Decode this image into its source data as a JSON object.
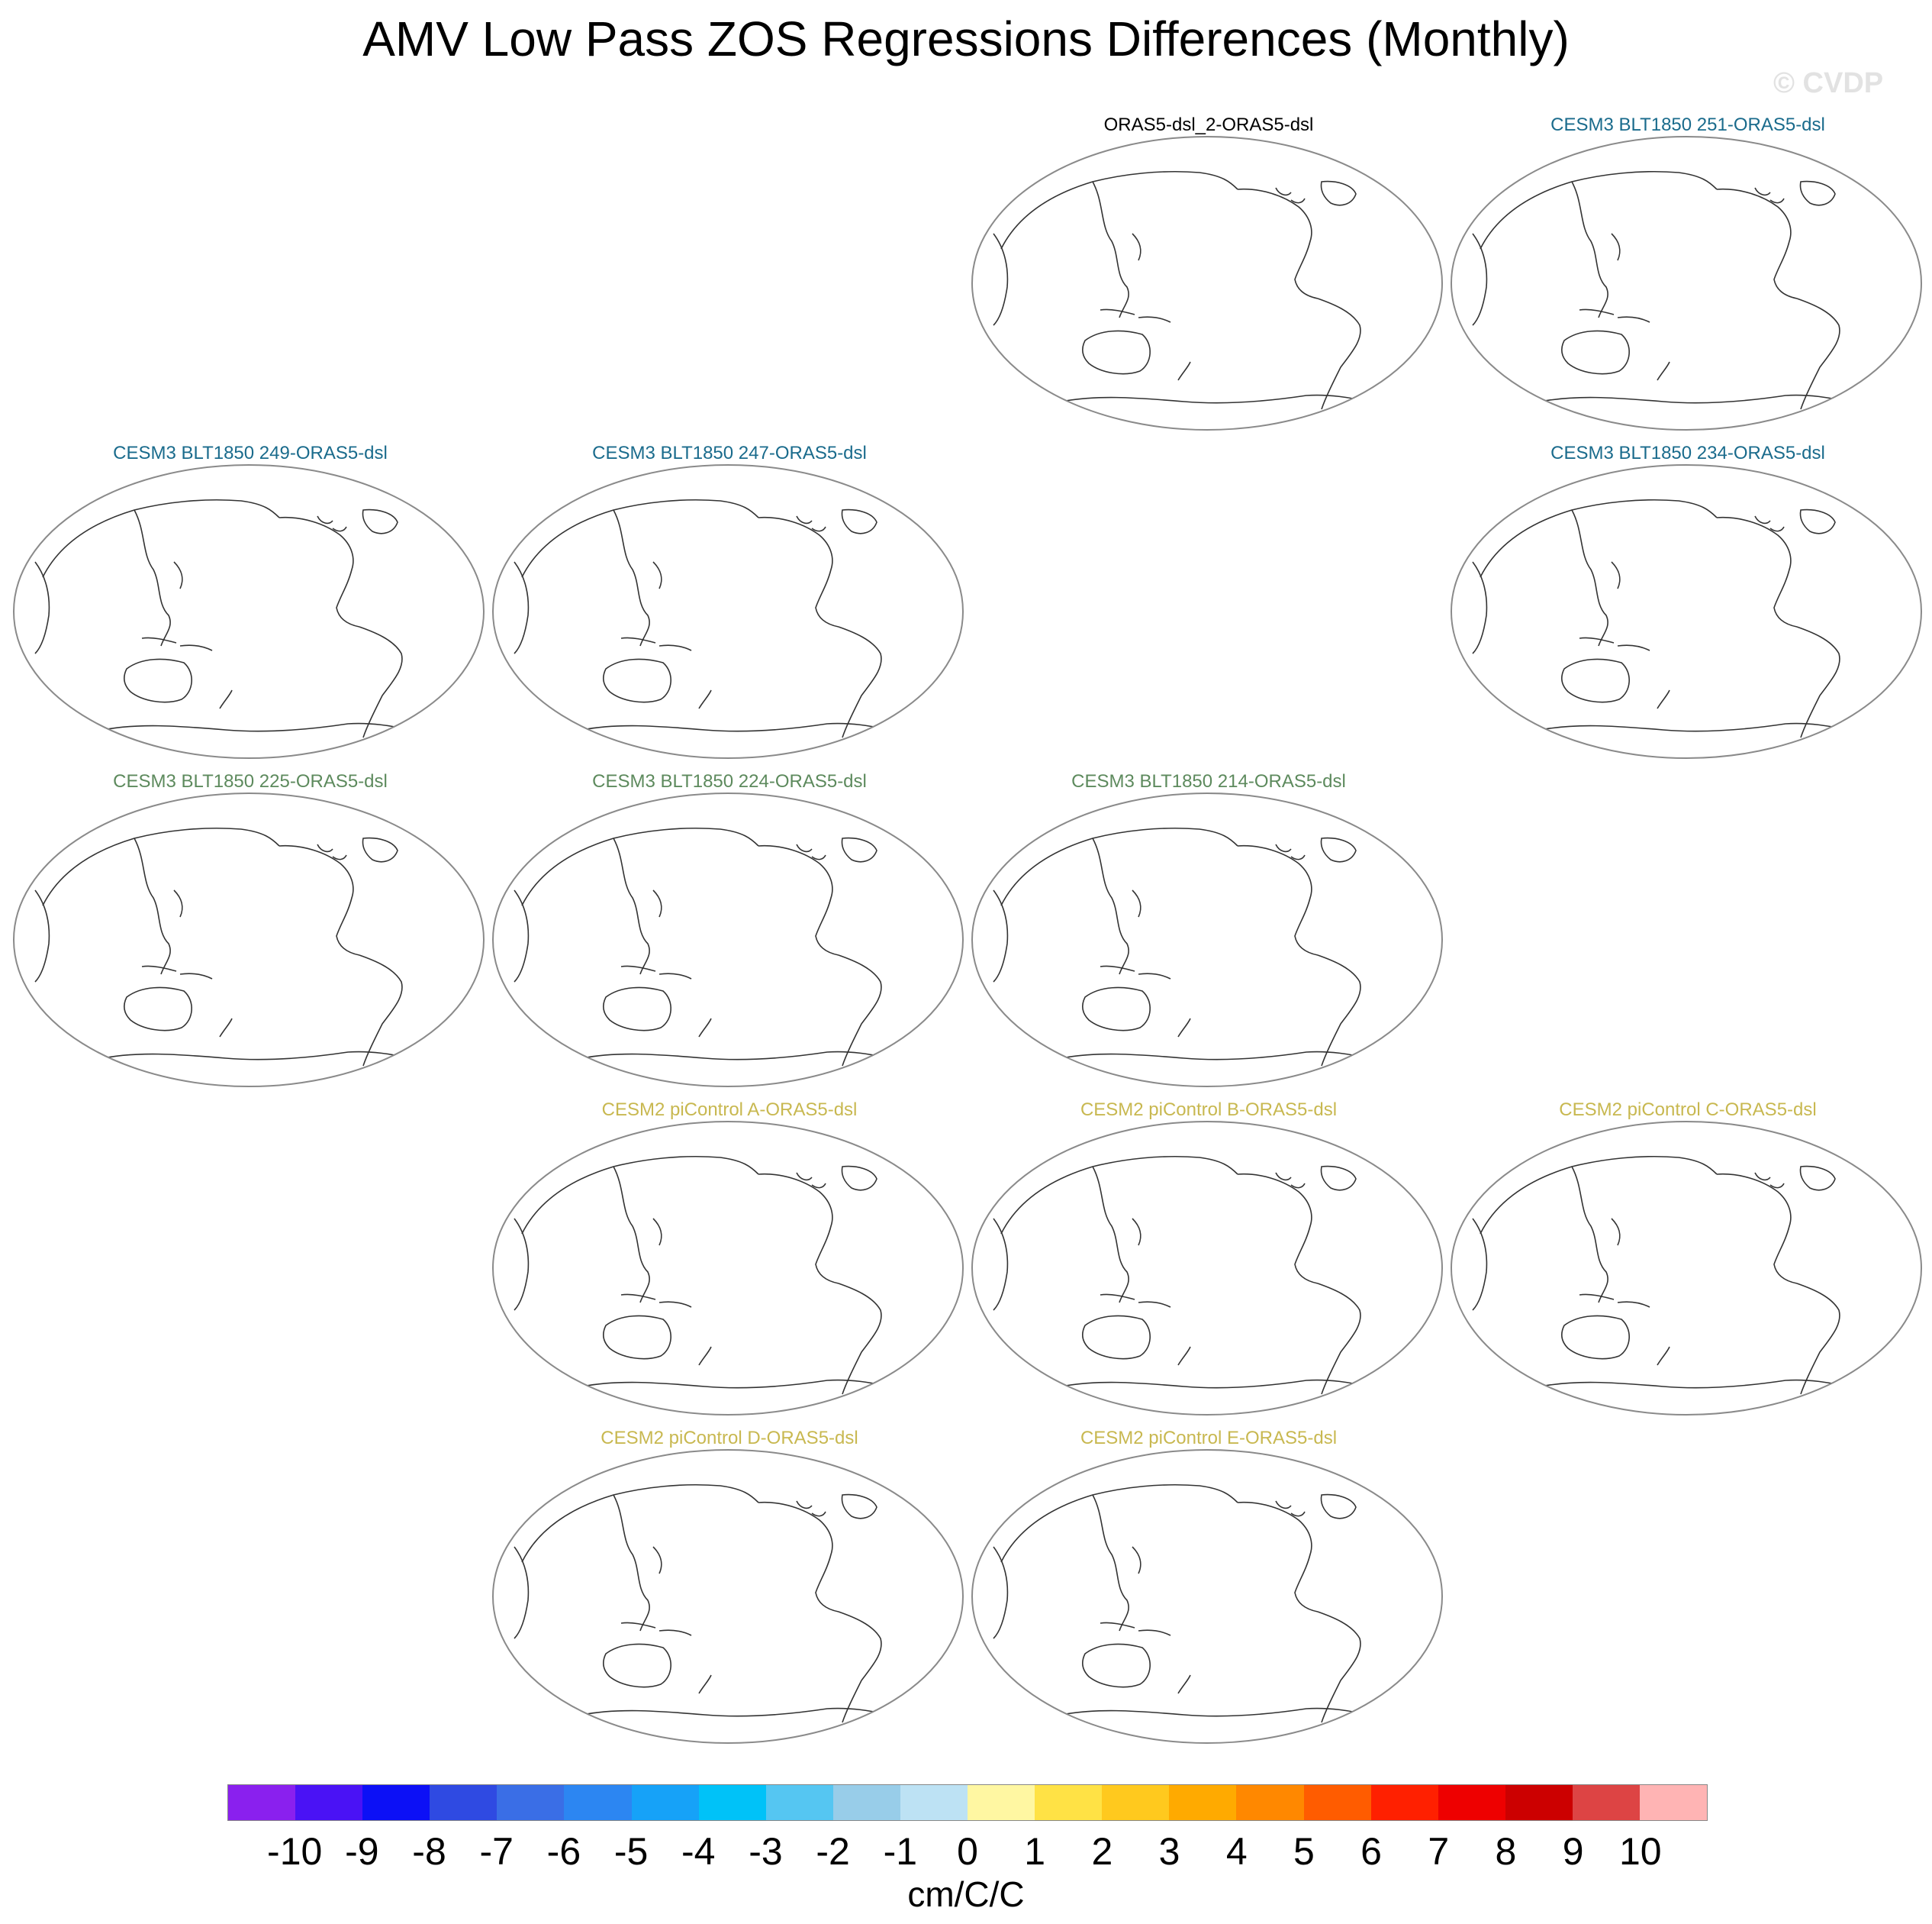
{
  "title": "AMV Low Pass ZOS Regressions Differences (Monthly)",
  "watermark": "© CVDP",
  "colors": {
    "black": "#000000",
    "blue": "#1a6b8c",
    "green": "#5d8a5d",
    "yellow": "#c8b850"
  },
  "panels": [
    {
      "title": "ORAS5-dsl_2-ORAS5-dsl",
      "color": "black"
    },
    {
      "title": "CESM3 BLT1850 251-ORAS5-dsl",
      "color": "blue"
    },
    {
      "title": "CESM3 BLT1850 249-ORAS5-dsl",
      "color": "blue"
    },
    {
      "title": "CESM3 BLT1850 247-ORAS5-dsl",
      "color": "blue"
    },
    {
      "title": "CESM3 BLT1850 234-ORAS5-dsl",
      "color": "blue"
    },
    {
      "title": "CESM3 BLT1850 225-ORAS5-dsl",
      "color": "green"
    },
    {
      "title": "CESM3 BLT1850 224-ORAS5-dsl",
      "color": "green"
    },
    {
      "title": "CESM3 BLT1850 214-ORAS5-dsl",
      "color": "green"
    },
    {
      "title": "CESM2 piControl A-ORAS5-dsl",
      "color": "yellow"
    },
    {
      "title": "CESM2 piControl B-ORAS5-dsl",
      "color": "yellow"
    },
    {
      "title": "CESM2 piControl C-ORAS5-dsl",
      "color": "yellow"
    },
    {
      "title": "CESM2 piControl D-ORAS5-dsl",
      "color": "yellow"
    },
    {
      "title": "CESM2 piControl E-ORAS5-dsl",
      "color": "yellow"
    }
  ],
  "colorbar": {
    "labels": [
      "-10",
      "-9",
      "-8",
      "-7",
      "-6",
      "-5",
      "-4",
      "-3",
      "-2",
      "-1",
      "0",
      "1",
      "2",
      "3",
      "4",
      "5",
      "6",
      "7",
      "8",
      "9",
      "10"
    ],
    "colors": [
      "#8a20ee",
      "#4a12f5",
      "#0c10f6",
      "#2f4ae2",
      "#3a6ee6",
      "#2c86f2",
      "#16a2f8",
      "#00c2f8",
      "#55c6f2",
      "#98cde9",
      "#bde2f4",
      "#fff7a2",
      "#ffe245",
      "#ffc91e",
      "#ffaa00",
      "#ff8800",
      "#ff5c00",
      "#ff2000",
      "#ee0000",
      "#cc0000",
      "#dd4444",
      "#ffb4b4"
    ],
    "units": "cm/C/C"
  }
}
